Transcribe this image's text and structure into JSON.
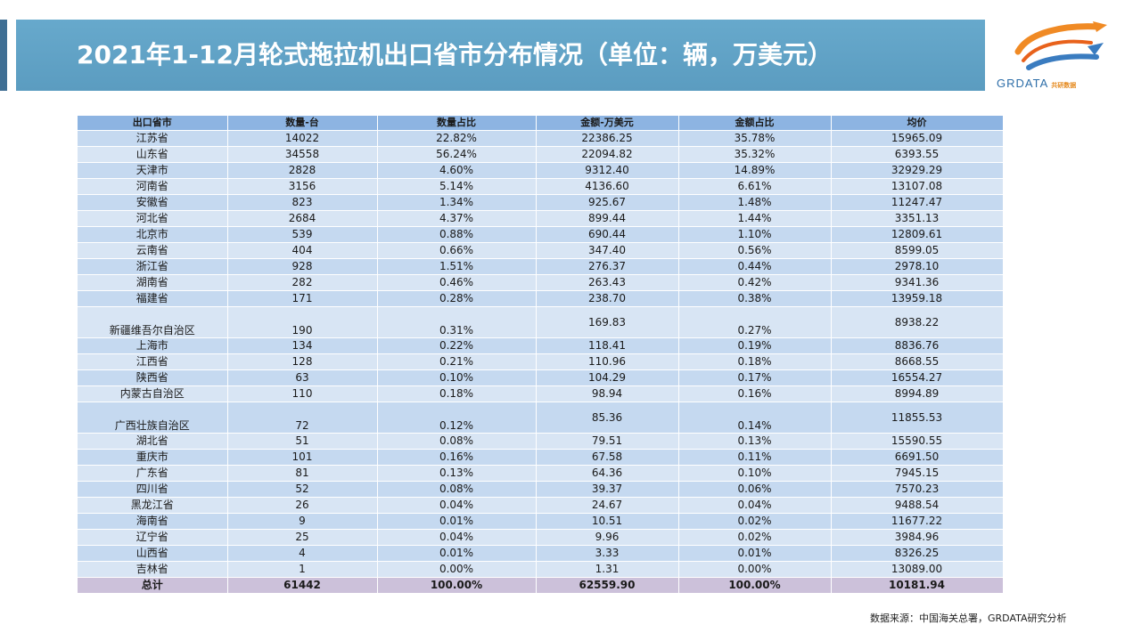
{
  "title": "2021年1-12月轮式拖拉机出口省市分布情况（单位：辆，万美元）",
  "logo": {
    "text": "GRDATA",
    "text_cn": "共研数据"
  },
  "colors": {
    "title_bg": "#5b9cc0",
    "header_bg": "#8db4e2",
    "row_bg": "#c5d9f0",
    "total_bg": "#ccc1da"
  },
  "table": {
    "headers": [
      "出口省市",
      "数量-台",
      "数量占比",
      "金额-万美元",
      "金额占比",
      "均价"
    ],
    "rows": [
      [
        "江苏省",
        "14022",
        "22.82%",
        "22386.25",
        "35.78%",
        "15965.09"
      ],
      [
        "山东省",
        "34558",
        "56.24%",
        "22094.82",
        "35.32%",
        "6393.55"
      ],
      [
        "天津市",
        "2828",
        "4.60%",
        "9312.40",
        "14.89%",
        "32929.29"
      ],
      [
        "河南省",
        "3156",
        "5.14%",
        "4136.60",
        "6.61%",
        "13107.08"
      ],
      [
        "安徽省",
        "823",
        "1.34%",
        "925.67",
        "1.48%",
        "11247.47"
      ],
      [
        "河北省",
        "2684",
        "4.37%",
        "899.44",
        "1.44%",
        "3351.13"
      ],
      [
        "北京市",
        "539",
        "0.88%",
        "690.44",
        "1.10%",
        "12809.61"
      ],
      [
        "云南省",
        "404",
        "0.66%",
        "347.40",
        "0.56%",
        "8599.05"
      ],
      [
        "浙江省",
        "928",
        "1.51%",
        "276.37",
        "0.44%",
        "2978.10"
      ],
      [
        "湖南省",
        "282",
        "0.46%",
        "263.43",
        "0.42%",
        "9341.36"
      ],
      [
        "福建省",
        "171",
        "0.28%",
        "238.70",
        "0.38%",
        "13959.18"
      ],
      [
        "新疆维吾尔自治区",
        "190",
        "0.31%",
        "169.83",
        "0.27%",
        "8938.22"
      ],
      [
        "上海市",
        "134",
        "0.22%",
        "118.41",
        "0.19%",
        "8836.76"
      ],
      [
        "江西省",
        "128",
        "0.21%",
        "110.96",
        "0.18%",
        "8668.55"
      ],
      [
        "陕西省",
        "63",
        "0.10%",
        "104.29",
        "0.17%",
        "16554.27"
      ],
      [
        "内蒙古自治区",
        "110",
        "0.18%",
        "98.94",
        "0.16%",
        "8994.89"
      ],
      [
        "广西壮族自治区",
        "72",
        "0.12%",
        "85.36",
        "0.14%",
        "11855.53"
      ],
      [
        "湖北省",
        "51",
        "0.08%",
        "79.51",
        "0.13%",
        "15590.55"
      ],
      [
        "重庆市",
        "101",
        "0.16%",
        "67.58",
        "0.11%",
        "6691.50"
      ],
      [
        "广东省",
        "81",
        "0.13%",
        "64.36",
        "0.10%",
        "7945.15"
      ],
      [
        "四川省",
        "52",
        "0.08%",
        "39.37",
        "0.06%",
        "7570.23"
      ],
      [
        "黑龙江省",
        "26",
        "0.04%",
        "24.67",
        "0.04%",
        "9488.54"
      ],
      [
        "海南省",
        "9",
        "0.01%",
        "10.51",
        "0.02%",
        "11677.22"
      ],
      [
        "辽宁省",
        "25",
        "0.04%",
        "9.96",
        "0.02%",
        "3984.96"
      ],
      [
        "山西省",
        "4",
        "0.01%",
        "3.33",
        "0.01%",
        "8326.25"
      ],
      [
        "吉林省",
        "1",
        "0.00%",
        "1.31",
        "0.00%",
        "13089.00"
      ]
    ],
    "total": [
      "总计",
      "61442",
      "100.00%",
      "62559.90",
      "100.00%",
      "10181.94"
    ]
  },
  "source": "数据来源：中国海关总署，GRDATA研究分析"
}
